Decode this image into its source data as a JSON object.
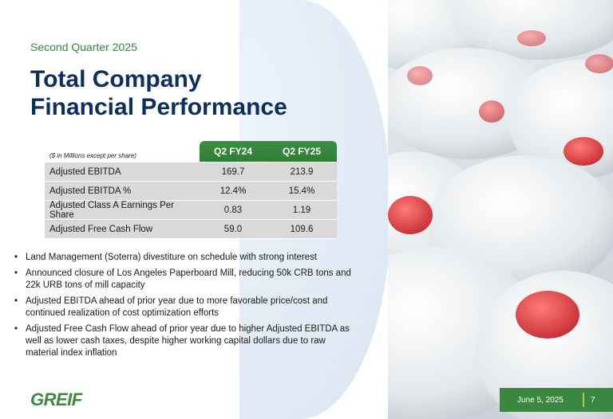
{
  "slide": {
    "subtitle": "Second Quarter 2025",
    "title_line1": "Total Company",
    "title_line2": "Financial Performance"
  },
  "table": {
    "note": "($ in Millions except per share)",
    "columns": [
      "Q2 FY24",
      "Q2 FY25"
    ],
    "rows": [
      {
        "label": "Adjusted EBITDA",
        "v1": "169.7",
        "v2": "213.9"
      },
      {
        "label": "Adjusted EBITDA %",
        "v1": "12.4%",
        "v2": "15.4%"
      },
      {
        "label": "Adjusted Class A Earnings Per Share",
        "v1": "0.83",
        "v2": "1.19"
      },
      {
        "label": "Adjusted Free Cash Flow",
        "v1": "59.0",
        "v2": "109.6"
      }
    ]
  },
  "bullets": [
    "Land Management (Soterra) divestiture on schedule with strong interest",
    "Announced closure of Los Angeles Paperboard Mill, reducing 50k CRB tons and 22k URB tons of mill capacity",
    "Adjusted EBITDA ahead of prior year due to more favorable price/cost and continued realization of cost optimization efforts",
    "Adjusted Free Cash Flow ahead of prior year due to higher Adjusted EBITDA as well as lower cash taxes, despite higher working capital dollars due to raw material index inflation"
  ],
  "footer": {
    "logo": "GREIF",
    "date": "June 5, 2025",
    "page": "7"
  },
  "colors": {
    "title": "#0d2f5e",
    "accent_green": "#2e8b3a",
    "footer_green": "#3b8742",
    "table_row": "#d9d9d9"
  }
}
